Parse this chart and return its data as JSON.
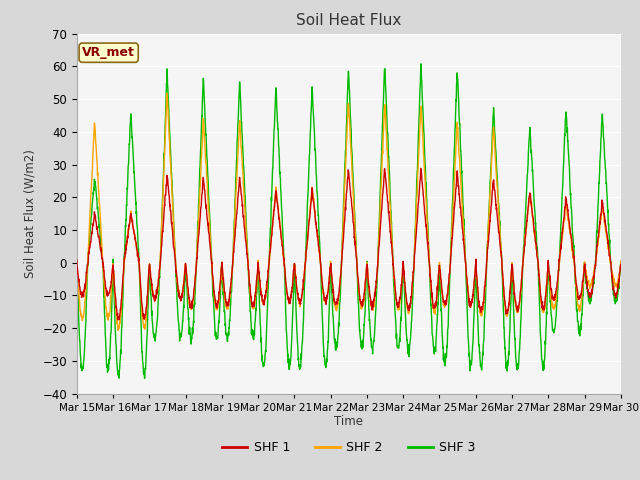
{
  "title": "Soil Heat Flux",
  "ylabel": "Soil Heat Flux (W/m2)",
  "xlabel": "Time",
  "ylim": [
    -40,
    70
  ],
  "xtick_labels": [
    "Mar 15",
    "Mar 16",
    "Mar 17",
    "Mar 18",
    "Mar 19",
    "Mar 20",
    "Mar 21",
    "Mar 22",
    "Mar 23",
    "Mar 24",
    "Mar 25",
    "Mar 26",
    "Mar 27",
    "Mar 28",
    "Mar 29",
    "Mar 30"
  ],
  "annotation_text": "VR_met",
  "colors": {
    "SHF1": "#cc0000",
    "SHF2": "#ffa500",
    "SHF3": "#00bb00"
  },
  "legend_labels": [
    "SHF 1",
    "SHF 2",
    "SHF 3"
  ],
  "bg_color": "#d8d8d8",
  "plot_bg_color": "#f5f5f5",
  "grid_color": "#ffffff",
  "line_width": 1.0,
  "num_days": 15,
  "points_per_day": 144,
  "yticks": [
    -40,
    -30,
    -20,
    -10,
    0,
    10,
    20,
    30,
    40,
    50,
    60,
    70
  ]
}
